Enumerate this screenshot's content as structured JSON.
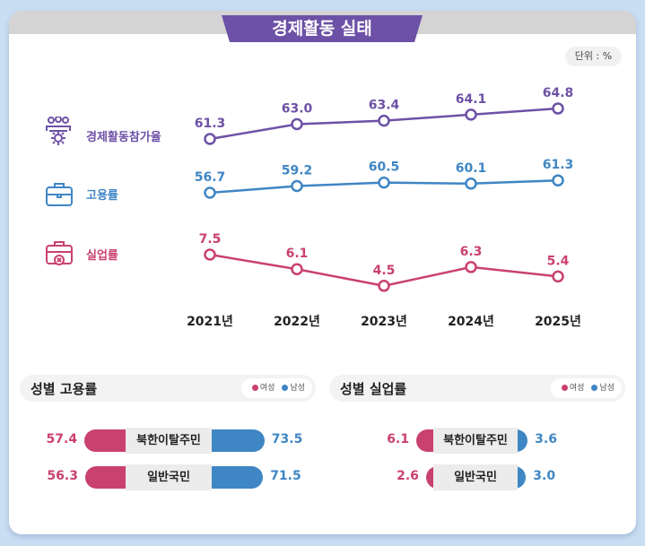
{
  "title": "경제활동 실태",
  "unit": "단위 : %",
  "colors": {
    "purple": "#6d51a6",
    "blue": "#3f86c4",
    "pink": "#c9416f"
  },
  "chart_data": [
    {
      "type": "line",
      "categories": [
        "2021년",
        "2022년",
        "2023년",
        "2024년",
        "2025년"
      ],
      "series": [
        {
          "name": "경제활동참가율",
          "icon": "people-gear-icon",
          "values": [
            61.3,
            63.0,
            63.4,
            64.1,
            64.8
          ]
        },
        {
          "name": "고용률",
          "icon": "briefcase-icon",
          "values": [
            56.7,
            59.2,
            60.5,
            60.1,
            61.3
          ]
        },
        {
          "name": "실업률",
          "icon": "briefcase-x-icon",
          "values": [
            7.5,
            6.1,
            4.5,
            6.3,
            5.4
          ]
        }
      ]
    },
    {
      "type": "bar",
      "title": "성별 고용률",
      "legend": [
        "여성",
        "남성"
      ],
      "categories": [
        "북한이탈주민",
        "일반국민"
      ],
      "series": [
        {
          "name": "여성",
          "values": [
            57.4,
            56.3
          ]
        },
        {
          "name": "남성",
          "values": [
            73.5,
            71.5
          ]
        }
      ]
    },
    {
      "type": "bar",
      "title": "성별 실업률",
      "legend": [
        "여성",
        "남성"
      ],
      "categories": [
        "북한이탈주민",
        "일반국민"
      ],
      "series": [
        {
          "name": "여성",
          "values": [
            6.1,
            2.6
          ]
        },
        {
          "name": "남성",
          "values": [
            3.6,
            3.0
          ]
        }
      ]
    }
  ]
}
